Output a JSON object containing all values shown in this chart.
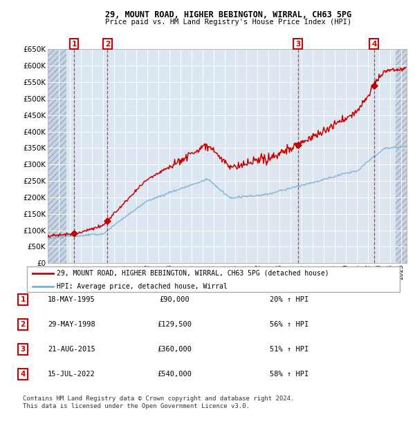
{
  "title": "29, MOUNT ROAD, HIGHER BEBINGTON, WIRRAL, CH63 5PG",
  "subtitle": "Price paid vs. HM Land Registry's House Price Index (HPI)",
  "ylim": [
    0,
    650000
  ],
  "yticks": [
    0,
    50000,
    100000,
    150000,
    200000,
    250000,
    300000,
    350000,
    400000,
    450000,
    500000,
    550000,
    600000,
    650000
  ],
  "ytick_labels": [
    "£0",
    "£50K",
    "£100K",
    "£150K",
    "£200K",
    "£250K",
    "£300K",
    "£350K",
    "£400K",
    "£450K",
    "£500K",
    "£550K",
    "£600K",
    "£650K"
  ],
  "xlim_start": 1993.0,
  "xlim_end": 2025.5,
  "hatch_left_end": 1994.7,
  "hatch_right_start": 2024.5,
  "sale_dates": [
    1995.38,
    1998.41,
    2015.64,
    2022.54
  ],
  "sale_prices": [
    90000,
    129500,
    360000,
    540000
  ],
  "sale_labels": [
    "1",
    "2",
    "3",
    "4"
  ],
  "sale_info": [
    {
      "num": "1",
      "date": "18-MAY-1995",
      "price": "£90,000",
      "change": "20% ↑ HPI"
    },
    {
      "num": "2",
      "date": "29-MAY-1998",
      "price": "£129,500",
      "change": "56% ↑ HPI"
    },
    {
      "num": "3",
      "date": "21-AUG-2015",
      "price": "£360,000",
      "change": "51% ↑ HPI"
    },
    {
      "num": "4",
      "date": "15-JUL-2022",
      "price": "£540,000",
      "change": "58% ↑ HPI"
    }
  ],
  "legend_property": "29, MOUNT ROAD, HIGHER BEBINGTON, WIRRAL, CH63 5PG (detached house)",
  "legend_hpi": "HPI: Average price, detached house, Wirral",
  "property_line_color": "#cc0000",
  "hpi_line_color": "#7bafd4",
  "sale_marker_color": "#cc0000",
  "footer": "Contains HM Land Registry data © Crown copyright and database right 2024.\nThis data is licensed under the Open Government Licence v3.0.",
  "plot_bg_color": "#dce6f1"
}
